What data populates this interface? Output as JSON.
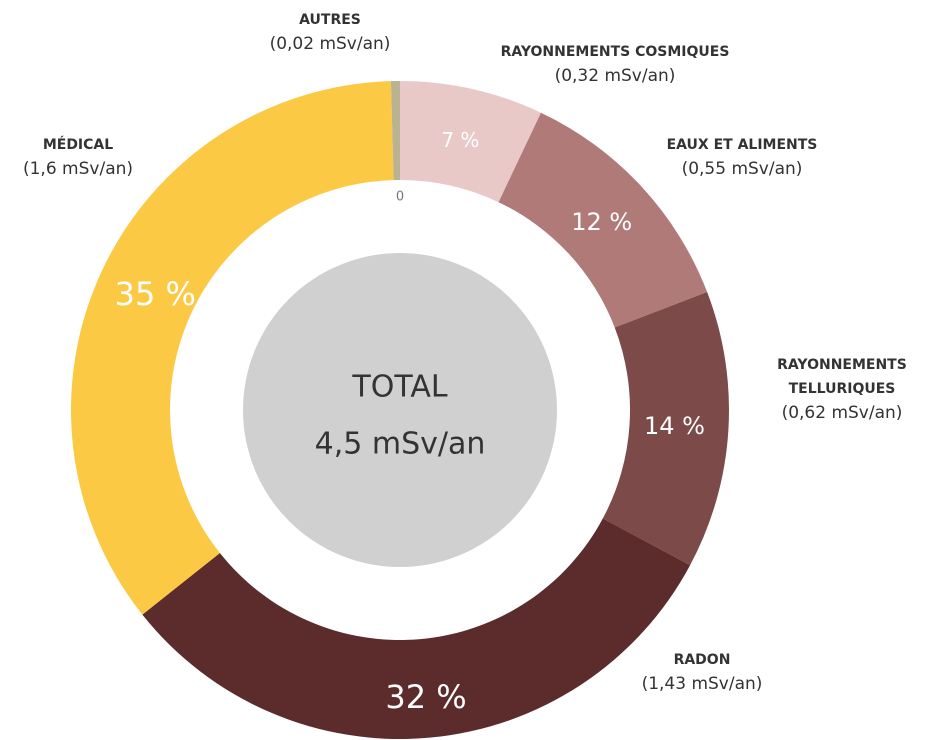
{
  "chart_data": {
    "type": "donut",
    "categories": [
      "RAYONNEMENTS COSMIQUES",
      "EAUX ET ALIMENTS",
      "RAYONNEMENTS TELLURIQUES",
      "RADON",
      "MÉDICAL",
      "AUTRES"
    ],
    "values": [
      0.32,
      0.55,
      0.62,
      1.43,
      1.6,
      0.02
    ],
    "value_labels": [
      "(0,32 mSv/an)",
      "(0,55 mSv/an)",
      "(0,62 mSv/an)",
      "(1,43 mSv/an)",
      "(1,6 mSv/an)",
      "(0,02 mSv/an)"
    ],
    "percent_labels": [
      "7 %",
      "12 %",
      "14 %",
      "32 %",
      "35 %",
      "0"
    ],
    "colors": [
      "#e8c9c8",
      "#b07a79",
      "#7b4a49",
      "#5c2b2b",
      "#fbc943",
      "#b9b391"
    ],
    "center_label": [
      "TOTAL",
      "4,5 mSv/an"
    ]
  }
}
